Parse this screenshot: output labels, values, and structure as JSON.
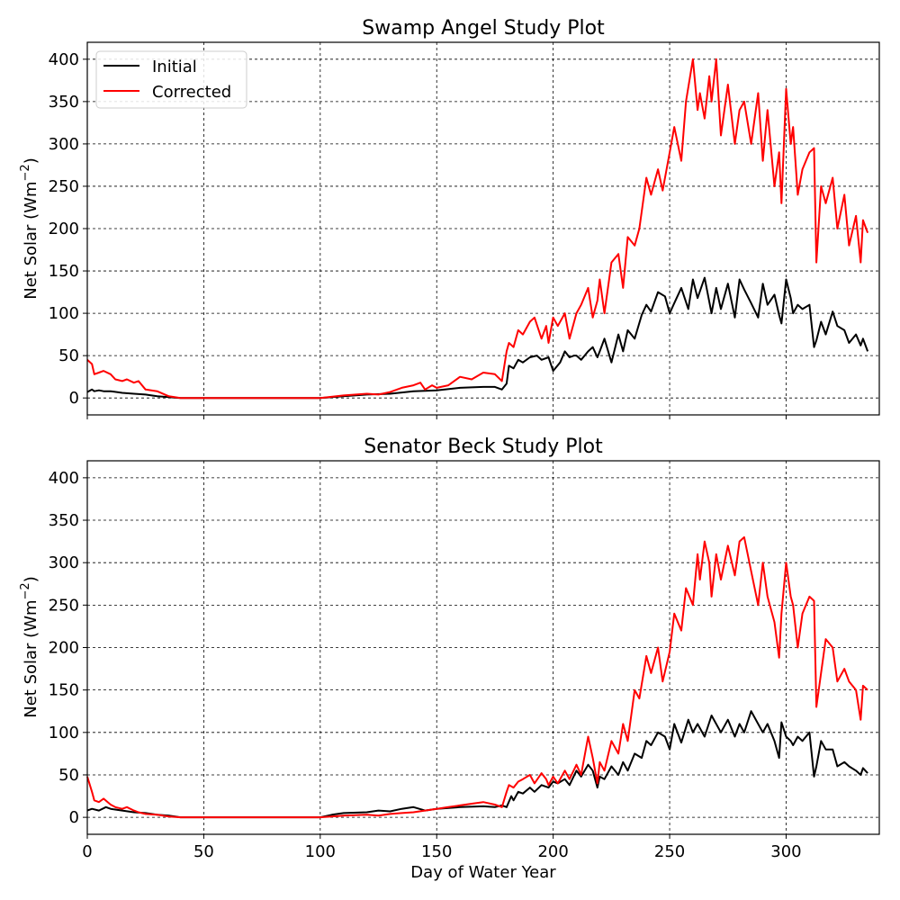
{
  "chart_data": [
    {
      "type": "line",
      "title": "Swamp Angel Study Plot",
      "ylabel": "Net Solar (Wm",
      "ylabel_sup": "−2",
      "ylabel_close": ")",
      "xlabel": "",
      "xlim": [
        0,
        340
      ],
      "ylim": [
        -20,
        420
      ],
      "yticks": [
        "0",
        "50",
        "100",
        "150",
        "200",
        "250",
        "300",
        "350",
        "400"
      ],
      "xtick_labels_shown": false,
      "grid": true,
      "legend": {
        "position": "top-left",
        "entries": [
          "Initial",
          "Corrected"
        ]
      },
      "series": [
        {
          "name": "Initial",
          "color": "#000000",
          "x": [
            0,
            2,
            3,
            5,
            7,
            10,
            15,
            20,
            25,
            30,
            35,
            40,
            60,
            80,
            100,
            110,
            120,
            130,
            140,
            150,
            160,
            170,
            175,
            178,
            180,
            181,
            183,
            185,
            187,
            190,
            193,
            195,
            198,
            200,
            203,
            205,
            207,
            209,
            210,
            212,
            215,
            217,
            219,
            220,
            222,
            225,
            228,
            230,
            232,
            235,
            238,
            240,
            242,
            245,
            248,
            250,
            252,
            255,
            258,
            260,
            262,
            265,
            268,
            270,
            272,
            275,
            278,
            280,
            282,
            285,
            288,
            290,
            292,
            295,
            297,
            298,
            300,
            302,
            303,
            305,
            307,
            310,
            312,
            313,
            315,
            317,
            320,
            322,
            325,
            327,
            330,
            332,
            333,
            335
          ],
          "y": [
            7,
            10,
            8,
            9,
            8,
            8,
            6,
            5,
            4,
            2,
            1,
            0,
            0,
            0,
            0,
            2,
            4,
            5,
            8,
            9,
            12,
            13,
            13,
            10,
            17,
            38,
            35,
            45,
            42,
            48,
            50,
            45,
            48,
            32,
            42,
            55,
            48,
            50,
            50,
            45,
            55,
            60,
            48,
            55,
            70,
            42,
            75,
            55,
            80,
            70,
            98,
            110,
            102,
            125,
            120,
            100,
            112,
            130,
            105,
            140,
            118,
            142,
            100,
            130,
            105,
            135,
            95,
            140,
            128,
            112,
            95,
            135,
            110,
            122,
            98,
            88,
            140,
            118,
            100,
            110,
            105,
            110,
            60,
            68,
            90,
            75,
            102,
            85,
            80,
            65,
            75,
            62,
            70,
            55
          ]
        },
        {
          "name": "Corrected",
          "color": "#ff0000",
          "x": [
            0,
            2,
            3,
            5,
            7,
            10,
            12,
            15,
            17,
            20,
            22,
            25,
            30,
            35,
            40,
            60,
            80,
            100,
            110,
            120,
            125,
            130,
            135,
            140,
            143,
            145,
            148,
            150,
            155,
            160,
            165,
            170,
            175,
            178,
            180,
            181,
            183,
            185,
            187,
            190,
            192,
            195,
            197,
            198,
            200,
            202,
            205,
            207,
            210,
            212,
            215,
            217,
            219,
            220,
            222,
            225,
            228,
            230,
            232,
            235,
            237,
            240,
            242,
            245,
            247,
            250,
            252,
            255,
            257,
            260,
            262,
            263,
            265,
            267,
            268,
            270,
            272,
            275,
            278,
            280,
            282,
            285,
            288,
            290,
            292,
            295,
            297,
            298,
            300,
            302,
            303,
            305,
            307,
            310,
            312,
            313,
            315,
            317,
            320,
            322,
            325,
            327,
            330,
            332,
            333,
            335
          ],
          "y": [
            45,
            40,
            28,
            30,
            32,
            28,
            22,
            20,
            22,
            18,
            20,
            10,
            8,
            2,
            0,
            0,
            0,
            0,
            3,
            5,
            4,
            7,
            12,
            15,
            18,
            10,
            15,
            12,
            15,
            25,
            22,
            30,
            28,
            20,
            55,
            65,
            60,
            80,
            75,
            90,
            95,
            70,
            85,
            65,
            95,
            85,
            100,
            70,
            100,
            110,
            130,
            95,
            115,
            140,
            100,
            160,
            170,
            130,
            190,
            180,
            200,
            260,
            240,
            270,
            245,
            290,
            320,
            280,
            350,
            400,
            340,
            360,
            330,
            380,
            350,
            400,
            310,
            370,
            300,
            340,
            350,
            300,
            360,
            280,
            340,
            250,
            290,
            230,
            365,
            300,
            320,
            240,
            270,
            290,
            295,
            160,
            250,
            230,
            260,
            200,
            240,
            180,
            215,
            160,
            210,
            195
          ]
        }
      ]
    },
    {
      "type": "line",
      "title": "Senator Beck Study Plot",
      "ylabel": "Net Solar (Wm",
      "ylabel_sup": "−2",
      "ylabel_close": ")",
      "xlabel": "Day of Water Year",
      "xlim": [
        0,
        340
      ],
      "ylim": [
        -20,
        420
      ],
      "xticks": [
        "0",
        "50",
        "100",
        "150",
        "200",
        "250",
        "300"
      ],
      "yticks": [
        "0",
        "50",
        "100",
        "150",
        "200",
        "250",
        "300",
        "350",
        "400"
      ],
      "xtick_labels_shown": true,
      "grid": true,
      "series": [
        {
          "name": "Initial",
          "color": "#000000",
          "x": [
            0,
            2,
            5,
            8,
            10,
            15,
            20,
            25,
            30,
            35,
            40,
            60,
            80,
            100,
            105,
            110,
            120,
            125,
            130,
            135,
            140,
            145,
            150,
            160,
            170,
            175,
            178,
            180,
            182,
            183,
            185,
            187,
            190,
            192,
            195,
            198,
            200,
            202,
            205,
            207,
            210,
            212,
            215,
            217,
            219,
            220,
            222,
            225,
            228,
            230,
            232,
            235,
            238,
            240,
            242,
            245,
            248,
            250,
            252,
            255,
            258,
            260,
            262,
            265,
            268,
            270,
            272,
            275,
            278,
            280,
            282,
            285,
            288,
            290,
            292,
            295,
            297,
            298,
            300,
            302,
            303,
            305,
            307,
            310,
            312,
            313,
            315,
            317,
            320,
            322,
            325,
            327,
            330,
            332,
            333,
            335
          ],
          "y": [
            8,
            10,
            8,
            12,
            10,
            8,
            6,
            5,
            3,
            2,
            0,
            0,
            0,
            0,
            3,
            5,
            6,
            8,
            7,
            10,
            12,
            8,
            10,
            12,
            13,
            12,
            14,
            12,
            25,
            20,
            30,
            28,
            35,
            30,
            38,
            35,
            42,
            40,
            45,
            38,
            55,
            48,
            62,
            55,
            35,
            48,
            45,
            60,
            50,
            65,
            55,
            75,
            70,
            90,
            85,
            100,
            95,
            80,
            110,
            88,
            115,
            100,
            110,
            95,
            120,
            110,
            100,
            115,
            95,
            110,
            100,
            125,
            110,
            100,
            110,
            90,
            70,
            112,
            95,
            90,
            85,
            95,
            90,
            100,
            48,
            60,
            90,
            80,
            80,
            60,
            65,
            60,
            55,
            50,
            58,
            52
          ]
        },
        {
          "name": "Corrected",
          "color": "#ff0000",
          "x": [
            0,
            2,
            3,
            5,
            7,
            10,
            12,
            15,
            17,
            20,
            22,
            25,
            30,
            35,
            40,
            60,
            80,
            100,
            110,
            120,
            125,
            130,
            135,
            140,
            145,
            150,
            155,
            160,
            165,
            170,
            175,
            178,
            180,
            181,
            183,
            185,
            187,
            190,
            192,
            195,
            197,
            198,
            200,
            202,
            205,
            207,
            210,
            212,
            215,
            217,
            219,
            220,
            222,
            225,
            228,
            230,
            232,
            235,
            237,
            240,
            242,
            245,
            247,
            250,
            252,
            255,
            257,
            260,
            262,
            263,
            265,
            267,
            268,
            270,
            272,
            275,
            278,
            280,
            282,
            285,
            288,
            290,
            292,
            295,
            297,
            298,
            300,
            302,
            303,
            305,
            307,
            310,
            312,
            313,
            315,
            317,
            320,
            322,
            325,
            327,
            330,
            332,
            333,
            335
          ],
          "y": [
            48,
            30,
            20,
            18,
            22,
            15,
            12,
            10,
            12,
            8,
            6,
            4,
            3,
            1,
            0,
            0,
            0,
            0,
            2,
            3,
            2,
            4,
            5,
            6,
            8,
            10,
            12,
            14,
            16,
            18,
            15,
            12,
            30,
            38,
            35,
            42,
            45,
            50,
            40,
            52,
            45,
            38,
            48,
            40,
            55,
            45,
            62,
            50,
            95,
            70,
            40,
            65,
            55,
            90,
            75,
            110,
            90,
            150,
            140,
            190,
            170,
            200,
            160,
            195,
            240,
            220,
            270,
            250,
            310,
            280,
            325,
            300,
            260,
            310,
            280,
            320,
            285,
            325,
            330,
            290,
            250,
            300,
            260,
            230,
            188,
            240,
            300,
            260,
            250,
            200,
            240,
            260,
            255,
            130,
            170,
            210,
            200,
            160,
            175,
            160,
            150,
            115,
            155,
            150
          ]
        }
      ]
    }
  ]
}
